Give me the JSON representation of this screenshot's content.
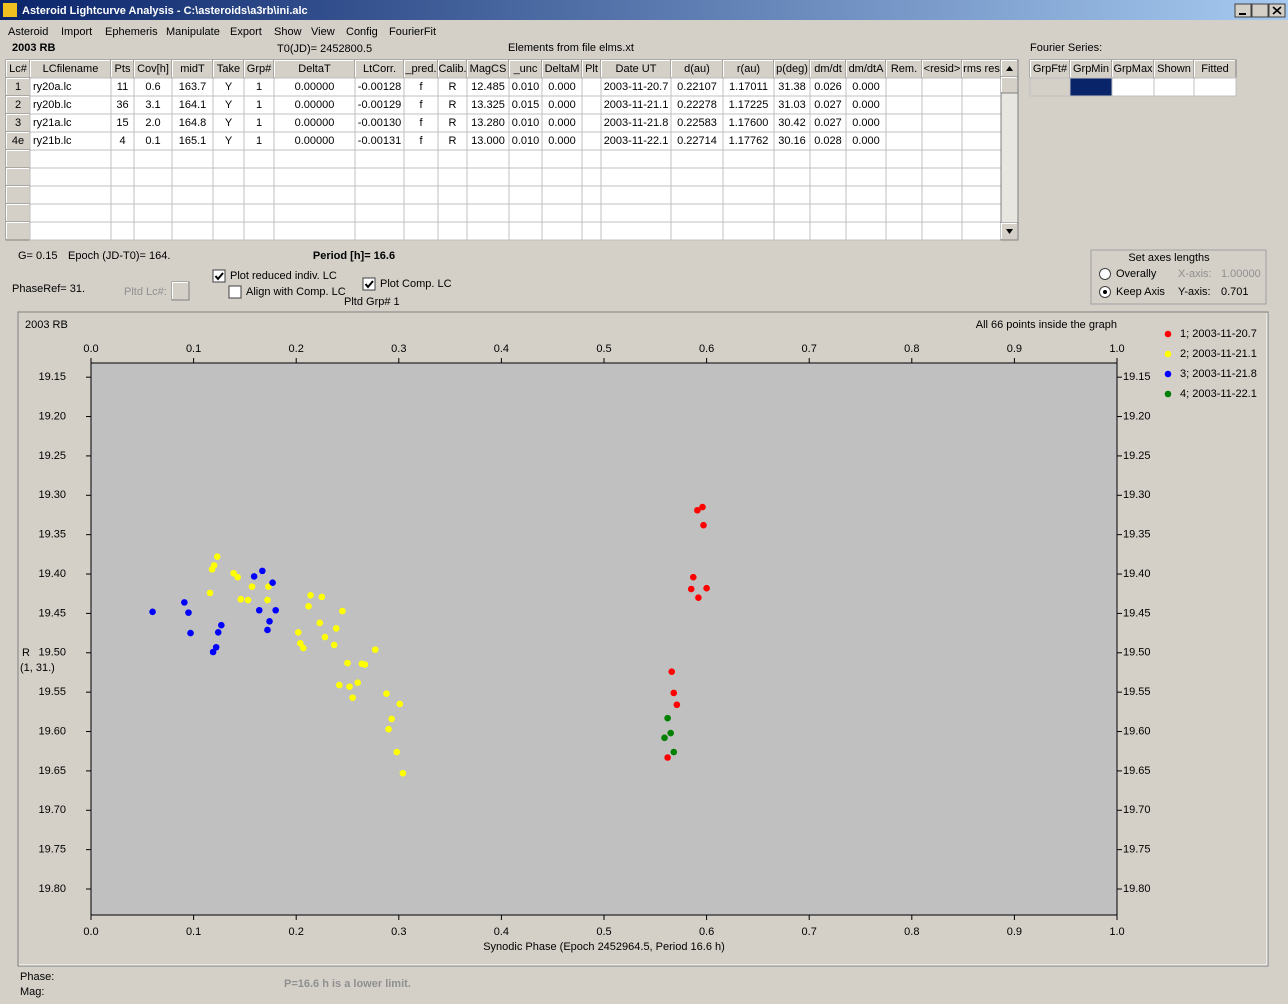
{
  "window": {
    "title": "Asteroid Lightcurve Analysis - C:\\asteroids\\a3rb\\ini.alc",
    "menu": [
      "Asteroid",
      "Import",
      "Ephemeris",
      "Manipulate",
      "Export",
      "Show",
      "View",
      "Config",
      "FourierFit"
    ]
  },
  "header": {
    "asteroid": "2003 RB",
    "t0": "T0(JD)= 2452800.5",
    "elements": "Elements from file elms.xt",
    "fourier_label": "Fourier Series:"
  },
  "table": {
    "columns": [
      "Lc#",
      "LCfilename",
      "Pts",
      "Cov[h]",
      "midT",
      "Take",
      "Grp#",
      "DeltaT",
      "LtCorr.",
      "_pred.",
      "Calib.",
      "MagCS",
      "_unc",
      "DeltaM",
      "Plt",
      "Date UT",
      "d(au)",
      "r(au)",
      "p(deg)",
      "dm/dt",
      "dm/dtA",
      "Rem.",
      "<resid>",
      "rms res"
    ],
    "rows": [
      [
        "1",
        "ry20a.lc",
        "11",
        "0.6",
        "163.7",
        "Y",
        "1",
        "0.00000",
        "-0.00128",
        "f",
        "R",
        "12.485",
        "0.010",
        "0.000",
        null,
        "2003-11-20.7",
        "0.22107",
        "1.17011",
        "31.38",
        "0.026",
        "0.000"
      ],
      [
        "2",
        "ry20b.lc",
        "36",
        "3.1",
        "164.1",
        "Y",
        "1",
        "0.00000",
        "-0.00129",
        "f",
        "R",
        "13.325",
        "0.015",
        "0.000",
        null,
        "2003-11-21.1",
        "0.22278",
        "1.17225",
        "31.03",
        "0.027",
        "0.000"
      ],
      [
        "3",
        "ry21a.lc",
        "15",
        "2.0",
        "164.8",
        "Y",
        "1",
        "0.00000",
        "-0.00130",
        "f",
        "R",
        "13.280",
        "0.010",
        "0.000",
        null,
        "2003-11-21.8",
        "0.22583",
        "1.17600",
        "30.42",
        "0.027",
        "0.000"
      ],
      [
        "4e",
        "ry21b.lc",
        "4",
        "0.1",
        "165.1",
        "Y",
        "1",
        "0.00000",
        "-0.00131",
        "f",
        "R",
        "13.000",
        "0.010",
        "0.000",
        null,
        "2003-11-22.1",
        "0.22714",
        "1.17762",
        "30.16",
        "0.028",
        "0.000"
      ]
    ]
  },
  "fourier_table": {
    "columns": [
      "GrpFt#",
      "GrpMin",
      "GrpMax",
      "Shown",
      "Fitted"
    ]
  },
  "controls": {
    "g": "G= 0.15",
    "epoch": "Epoch (JD-T0)= 164.",
    "period": "Period [h]= 16.6",
    "phase_ref": "PhaseRef= 31.",
    "pltd_lc": "Pltd Lc#:",
    "pltd_grp": "Pltd Grp#  1",
    "checkboxes": [
      {
        "label": "Plot reduced indiv. LC",
        "checked": true
      },
      {
        "label": "Align with Comp. LC",
        "checked": false
      },
      {
        "label": "Plot Comp. LC",
        "checked": true
      }
    ],
    "axes_box": {
      "title": "Set axes lengths",
      "radios": [
        {
          "label": "Overally",
          "selected": false
        },
        {
          "label": "Keep Axis",
          "selected": true
        }
      ],
      "x_label": "X-axis:",
      "x_value": "1.00000",
      "y_label": "Y-axis:",
      "y_value": "0.701"
    }
  },
  "chart_data": {
    "type": "scatter",
    "title": "2003 RB",
    "annotation": "All 66 points inside the graph",
    "xlabel": "Synodic Phase (Epoch 2452964.5, Period 16.6 h)",
    "ylabel": "R",
    "ylabel_sub": "(1, 31.)",
    "xlim": [
      0,
      1
    ],
    "ylim": [
      19.132,
      19.833
    ],
    "y_inverted": true,
    "xticks": [
      {
        "value": 0,
        "label": "0.0"
      },
      0.1,
      0.2,
      0.3,
      0.4,
      0.5,
      0.6,
      0.7,
      0.8,
      0.9,
      {
        "value": 1,
        "label": "1.0"
      }
    ],
    "yticks": [
      19.15,
      {
        "value": 19.2,
        "label": "19.20"
      },
      19.25,
      {
        "value": 19.3,
        "label": "19.30"
      },
      19.35,
      {
        "value": 19.4,
        "label": "19.40"
      },
      19.45,
      {
        "value": 19.5,
        "label": "19.50"
      },
      19.55,
      {
        "value": 19.6,
        "label": "19.60"
      },
      19.65,
      {
        "value": 19.7,
        "label": "19.70"
      },
      19.75,
      {
        "value": 19.8,
        "label": "19.80"
      }
    ],
    "series": [
      {
        "name": "1; 2003-11-20.7",
        "color": "#ff0000",
        "x": [
          0.591,
          0.596,
          0.597,
          0.587,
          0.6,
          0.585,
          0.592,
          0.566,
          0.568,
          0.571,
          0.562
        ],
        "values": [
          19.319,
          19.315,
          19.338,
          19.404,
          19.418,
          19.419,
          19.43,
          19.524,
          19.551,
          19.566,
          19.633
        ]
      },
      {
        "name": "2; 2003-11-21.1",
        "color": "#ffff00",
        "x": [
          0.123,
          0.12,
          0.118,
          0.116,
          0.139,
          0.143,
          0.146,
          0.153,
          0.157,
          0.173,
          0.172,
          0.214,
          0.212,
          0.225,
          0.245,
          0.223,
          0.239,
          0.228,
          0.237,
          0.202,
          0.204,
          0.207,
          0.277,
          0.25,
          0.264,
          0.267,
          0.242,
          0.252,
          0.26,
          0.255,
          0.288,
          0.301,
          0.293,
          0.29,
          0.298,
          0.304
        ],
        "values": [
          19.378,
          19.389,
          19.394,
          19.424,
          19.399,
          19.404,
          19.432,
          19.433,
          19.416,
          19.416,
          19.433,
          19.427,
          19.441,
          19.429,
          19.447,
          19.462,
          19.469,
          19.48,
          19.49,
          19.474,
          19.488,
          19.494,
          19.496,
          19.513,
          19.514,
          19.515,
          19.541,
          19.543,
          19.538,
          19.557,
          19.552,
          19.565,
          19.584,
          19.597,
          19.626,
          19.653
        ]
      },
      {
        "name": "3; 2003-11-21.8",
        "color": "#0000ff",
        "x": [
          0.06,
          0.091,
          0.095,
          0.097,
          0.119,
          0.122,
          0.124,
          0.127,
          0.159,
          0.167,
          0.177,
          0.164,
          0.174,
          0.18,
          0.172
        ],
        "values": [
          19.448,
          19.436,
          19.449,
          19.475,
          19.499,
          19.493,
          19.474,
          19.465,
          19.403,
          19.396,
          19.411,
          19.446,
          19.46,
          19.446,
          19.471
        ]
      },
      {
        "name": "4; 2003-11-22.1",
        "color": "#008000",
        "x": [
          0.562,
          0.565,
          0.559,
          0.568
        ],
        "values": [
          19.583,
          19.602,
          19.608,
          19.626
        ]
      }
    ]
  },
  "status": {
    "phase": "Phase:",
    "mag": "Mag:",
    "note": "P=16.6 h is a lower limit."
  }
}
